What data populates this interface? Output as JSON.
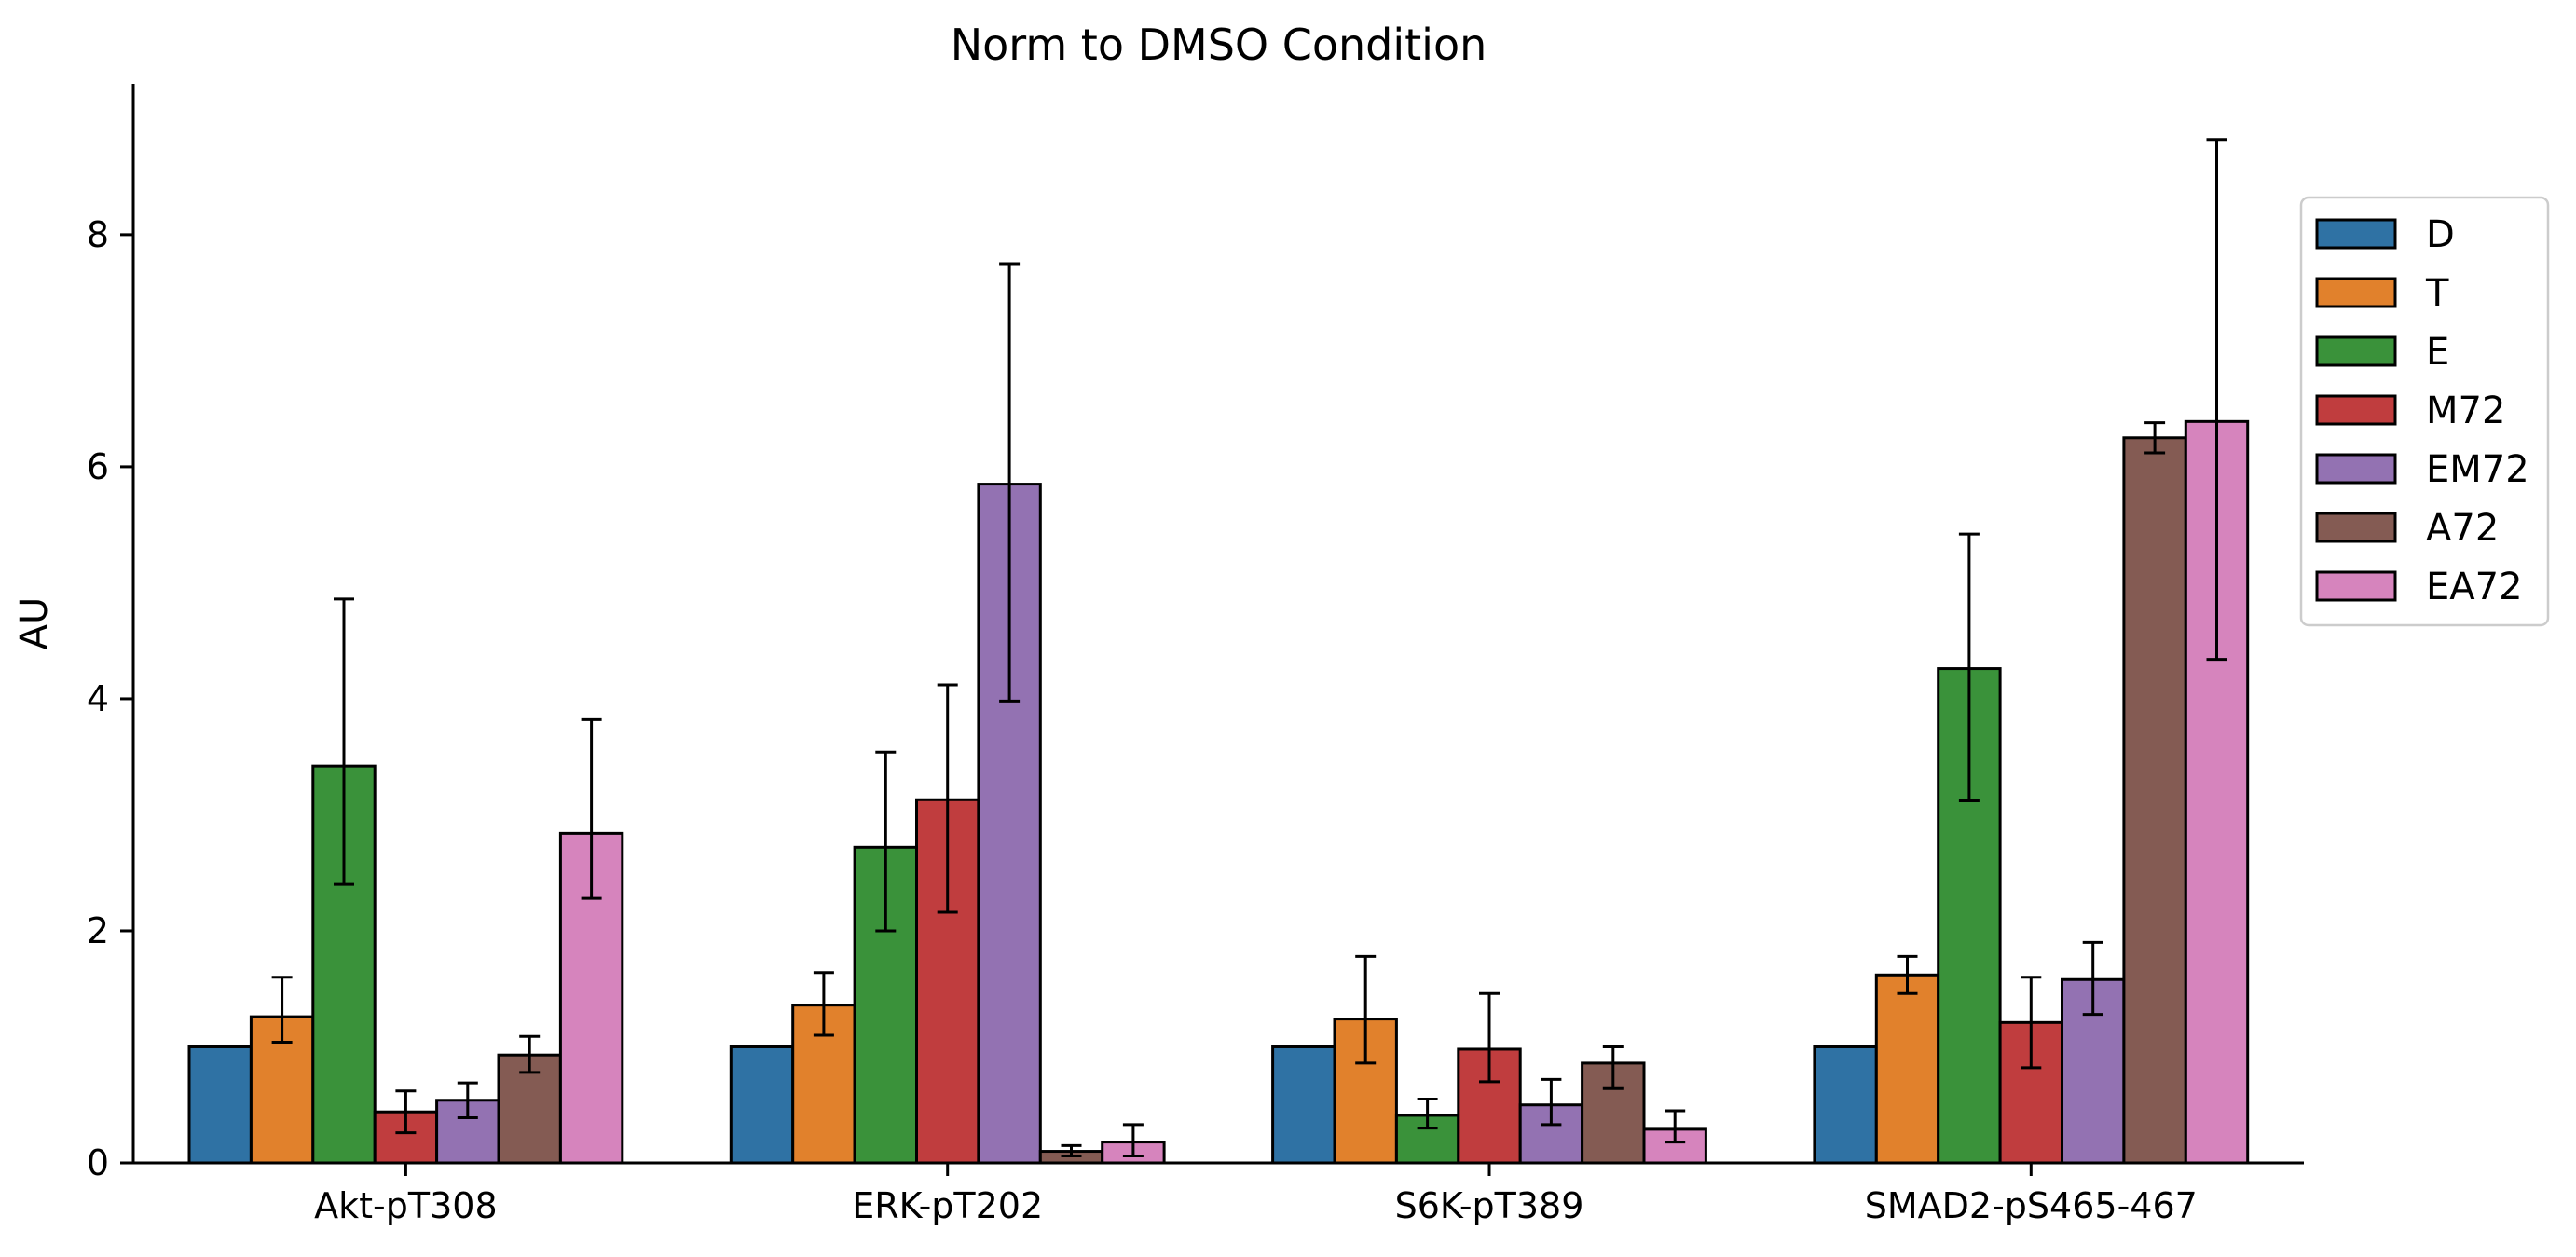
{
  "chart_data": {
    "type": "bar",
    "title": "Norm to DMSO Condition",
    "xlabel": "",
    "ylabel": "AU",
    "ylim": [
      0,
      9.3
    ],
    "yticks": [
      0,
      2,
      4,
      6,
      8
    ],
    "grid": false,
    "legend_position": "right",
    "categories": [
      "Akt-pT308",
      "ERK-pT202",
      "S6K-pT389",
      "SMAD2-pS465-467"
    ],
    "series": [
      {
        "name": "D",
        "color": "#2f72a4",
        "values": [
          1.0,
          1.0,
          1.0,
          1.0
        ],
        "err_low": [
          1.0,
          1.0,
          1.0,
          1.0
        ],
        "err_high": [
          1.0,
          1.0,
          1.0,
          1.0
        ]
      },
      {
        "name": "T",
        "color": "#e1812c",
        "values": [
          1.26,
          1.36,
          1.24,
          1.62
        ],
        "err_low": [
          1.04,
          1.1,
          0.86,
          1.46
        ],
        "err_high": [
          1.6,
          1.64,
          1.78,
          1.78
        ]
      },
      {
        "name": "E",
        "color": "#3a923a",
        "values": [
          3.42,
          2.72,
          0.41,
          4.26
        ],
        "err_low": [
          2.4,
          2.0,
          0.3,
          3.12
        ],
        "err_high": [
          4.86,
          3.54,
          0.55,
          5.42
        ]
      },
      {
        "name": "M72",
        "color": "#c03d3e",
        "values": [
          0.44,
          3.13,
          0.98,
          1.21
        ],
        "err_low": [
          0.26,
          2.16,
          0.7,
          0.82
        ],
        "err_high": [
          0.62,
          4.12,
          1.46,
          1.6
        ]
      },
      {
        "name": "EM72",
        "color": "#9372b2",
        "values": [
          0.54,
          5.85,
          0.5,
          1.58
        ],
        "err_low": [
          0.39,
          3.98,
          0.33,
          1.28
        ],
        "err_high": [
          0.69,
          7.75,
          0.72,
          1.9
        ]
      },
      {
        "name": "A72",
        "color": "#845b53",
        "values": [
          0.93,
          0.1,
          0.86,
          6.25
        ],
        "err_low": [
          0.78,
          0.06,
          0.64,
          6.12
        ],
        "err_high": [
          1.09,
          0.15,
          1.0,
          6.38
        ]
      },
      {
        "name": "EA72",
        "color": "#d684bd",
        "values": [
          2.84,
          0.18,
          0.29,
          6.39
        ],
        "err_low": [
          2.28,
          0.06,
          0.18,
          4.34
        ],
        "err_high": [
          3.82,
          0.33,
          0.45,
          8.82
        ]
      }
    ]
  }
}
